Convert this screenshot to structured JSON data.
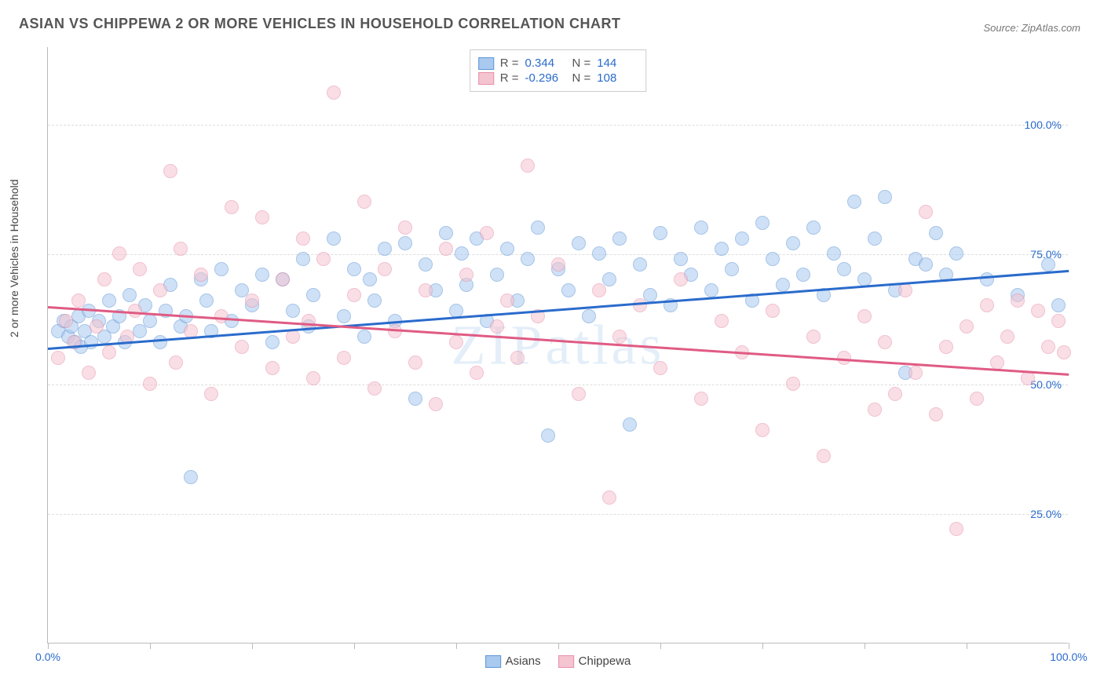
{
  "title": "ASIAN VS CHIPPEWA 2 OR MORE VEHICLES IN HOUSEHOLD CORRELATION CHART",
  "source": "Source: ZipAtlas.com",
  "ylabel": "2 or more Vehicles in Household",
  "watermark": "ZIPatlas",
  "chart": {
    "type": "scatter",
    "xlim": [
      0,
      100
    ],
    "ylim": [
      0,
      115
    ],
    "yticks": [
      25,
      50,
      75,
      100
    ],
    "ytick_labels": [
      "25.0%",
      "50.0%",
      "75.0%",
      "100.0%"
    ],
    "ytick_color": "#2a6bcc",
    "xticks": [
      0,
      10,
      20,
      30,
      40,
      50,
      60,
      70,
      80,
      90,
      100
    ],
    "xtick_labels_shown": {
      "0": "0.0%",
      "100": "100.0%"
    },
    "xtick_color": "#2a6bcc",
    "grid_color": "#dddddd",
    "background_color": "#ffffff",
    "series": [
      {
        "name": "Asians",
        "fill": "#a9c9ef",
        "stroke": "#5f95d6",
        "line_color": "#2a6bcc",
        "R": "0.344",
        "N": "144",
        "trend": {
          "x1": 0,
          "y1": 57,
          "x2": 100,
          "y2": 72
        },
        "points": [
          [
            1,
            60
          ],
          [
            1.5,
            62
          ],
          [
            2,
            59
          ],
          [
            2.3,
            61
          ],
          [
            2.7,
            58
          ],
          [
            3,
            63
          ],
          [
            3.2,
            57
          ],
          [
            3.6,
            60
          ],
          [
            4,
            64
          ],
          [
            4.2,
            58
          ],
          [
            5,
            62
          ],
          [
            5.5,
            59
          ],
          [
            6,
            66
          ],
          [
            6.4,
            61
          ],
          [
            7,
            63
          ],
          [
            7.5,
            58
          ],
          [
            8,
            67
          ],
          [
            9,
            60
          ],
          [
            9.5,
            65
          ],
          [
            10,
            62
          ],
          [
            11,
            58
          ],
          [
            11.5,
            64
          ],
          [
            12,
            69
          ],
          [
            13,
            61
          ],
          [
            13.5,
            63
          ],
          [
            14,
            32
          ],
          [
            15,
            70
          ],
          [
            15.5,
            66
          ],
          [
            16,
            60
          ],
          [
            17,
            72
          ],
          [
            18,
            62
          ],
          [
            19,
            68
          ],
          [
            20,
            65
          ],
          [
            21,
            71
          ],
          [
            22,
            58
          ],
          [
            23,
            70
          ],
          [
            24,
            64
          ],
          [
            25,
            74
          ],
          [
            25.5,
            61
          ],
          [
            26,
            67
          ],
          [
            28,
            78
          ],
          [
            29,
            63
          ],
          [
            30,
            72
          ],
          [
            31,
            59
          ],
          [
            31.5,
            70
          ],
          [
            32,
            66
          ],
          [
            33,
            76
          ],
          [
            34,
            62
          ],
          [
            35,
            77
          ],
          [
            36,
            47
          ],
          [
            37,
            73
          ],
          [
            38,
            68
          ],
          [
            39,
            79
          ],
          [
            40,
            64
          ],
          [
            40.5,
            75
          ],
          [
            41,
            69
          ],
          [
            42,
            78
          ],
          [
            43,
            62
          ],
          [
            44,
            71
          ],
          [
            45,
            76
          ],
          [
            46,
            66
          ],
          [
            47,
            74
          ],
          [
            48,
            80
          ],
          [
            49,
            40
          ],
          [
            50,
            72
          ],
          [
            51,
            68
          ],
          [
            52,
            77
          ],
          [
            53,
            63
          ],
          [
            54,
            75
          ],
          [
            55,
            70
          ],
          [
            56,
            78
          ],
          [
            57,
            42
          ],
          [
            58,
            73
          ],
          [
            59,
            67
          ],
          [
            60,
            79
          ],
          [
            61,
            65
          ],
          [
            62,
            74
          ],
          [
            63,
            71
          ],
          [
            64,
            80
          ],
          [
            65,
            68
          ],
          [
            66,
            76
          ],
          [
            67,
            72
          ],
          [
            68,
            78
          ],
          [
            69,
            66
          ],
          [
            70,
            81
          ],
          [
            71,
            74
          ],
          [
            72,
            69
          ],
          [
            73,
            77
          ],
          [
            74,
            71
          ],
          [
            75,
            80
          ],
          [
            76,
            67
          ],
          [
            77,
            75
          ],
          [
            78,
            72
          ],
          [
            79,
            85
          ],
          [
            80,
            70
          ],
          [
            81,
            78
          ],
          [
            82,
            86
          ],
          [
            83,
            68
          ],
          [
            84,
            52
          ],
          [
            85,
            74
          ],
          [
            86,
            73
          ],
          [
            87,
            79
          ],
          [
            88,
            71
          ],
          [
            89,
            75
          ],
          [
            92,
            70
          ],
          [
            95,
            67
          ],
          [
            98,
            73
          ],
          [
            99,
            65
          ]
        ]
      },
      {
        "name": "Chippewa",
        "fill": "#f5c4d1",
        "stroke": "#e78fa9",
        "line_color": "#e05b84",
        "R": "-0.296",
        "N": "108",
        "trend": {
          "x1": 0,
          "y1": 65,
          "x2": 100,
          "y2": 52
        },
        "points": [
          [
            1,
            55
          ],
          [
            1.8,
            62
          ],
          [
            2.5,
            58
          ],
          [
            3,
            66
          ],
          [
            4,
            52
          ],
          [
            4.8,
            61
          ],
          [
            5.5,
            70
          ],
          [
            6,
            56
          ],
          [
            7,
            75
          ],
          [
            7.8,
            59
          ],
          [
            8.5,
            64
          ],
          [
            9,
            72
          ],
          [
            10,
            50
          ],
          [
            11,
            68
          ],
          [
            12,
            91
          ],
          [
            12.5,
            54
          ],
          [
            13,
            76
          ],
          [
            14,
            60
          ],
          [
            15,
            71
          ],
          [
            16,
            48
          ],
          [
            17,
            63
          ],
          [
            18,
            84
          ],
          [
            19,
            57
          ],
          [
            20,
            66
          ],
          [
            21,
            82
          ],
          [
            22,
            53
          ],
          [
            23,
            70
          ],
          [
            24,
            59
          ],
          [
            25,
            78
          ],
          [
            25.5,
            62
          ],
          [
            26,
            51
          ],
          [
            27,
            74
          ],
          [
            28,
            106
          ],
          [
            29,
            55
          ],
          [
            30,
            67
          ],
          [
            31,
            85
          ],
          [
            32,
            49
          ],
          [
            33,
            72
          ],
          [
            34,
            60
          ],
          [
            35,
            80
          ],
          [
            36,
            54
          ],
          [
            37,
            68
          ],
          [
            38,
            46
          ],
          [
            39,
            76
          ],
          [
            40,
            58
          ],
          [
            41,
            71
          ],
          [
            42,
            52
          ],
          [
            43,
            79
          ],
          [
            44,
            61
          ],
          [
            45,
            66
          ],
          [
            46,
            55
          ],
          [
            47,
            92
          ],
          [
            48,
            63
          ],
          [
            50,
            73
          ],
          [
            52,
            48
          ],
          [
            54,
            68
          ],
          [
            55,
            28
          ],
          [
            56,
            59
          ],
          [
            58,
            65
          ],
          [
            60,
            53
          ],
          [
            62,
            70
          ],
          [
            64,
            47
          ],
          [
            66,
            62
          ],
          [
            68,
            56
          ],
          [
            70,
            41
          ],
          [
            71,
            64
          ],
          [
            73,
            50
          ],
          [
            75,
            59
          ],
          [
            76,
            36
          ],
          [
            78,
            55
          ],
          [
            80,
            63
          ],
          [
            81,
            45
          ],
          [
            82,
            58
          ],
          [
            83,
            48
          ],
          [
            84,
            68
          ],
          [
            85,
            52
          ],
          [
            86,
            83
          ],
          [
            87,
            44
          ],
          [
            88,
            57
          ],
          [
            89,
            22
          ],
          [
            90,
            61
          ],
          [
            91,
            47
          ],
          [
            92,
            65
          ],
          [
            93,
            54
          ],
          [
            94,
            59
          ],
          [
            95,
            66
          ],
          [
            96,
            51
          ],
          [
            97,
            64
          ],
          [
            98,
            57
          ],
          [
            99,
            62
          ],
          [
            99.5,
            56
          ]
        ]
      }
    ]
  },
  "legend_bottom": [
    {
      "label": "Asians",
      "fill": "#a9c9ef",
      "stroke": "#5f95d6"
    },
    {
      "label": "Chippewa",
      "fill": "#f5c4d1",
      "stroke": "#e78fa9"
    }
  ]
}
